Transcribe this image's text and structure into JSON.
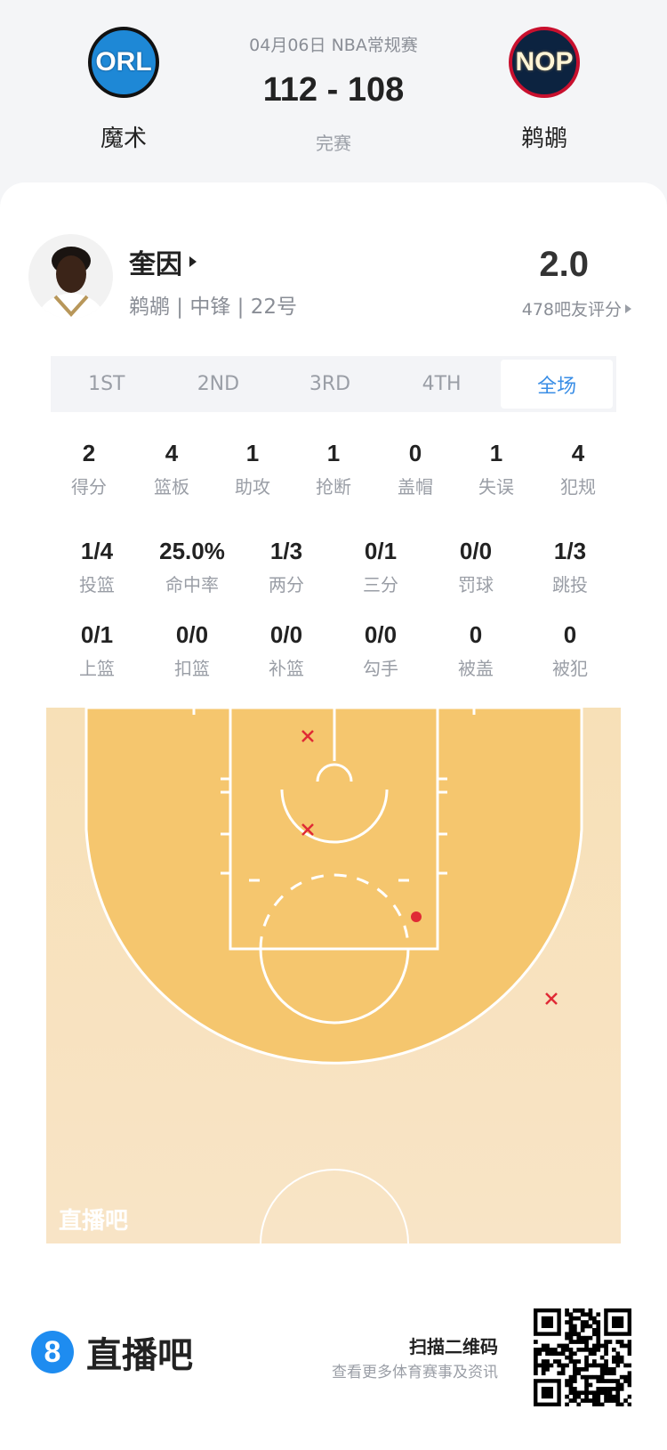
{
  "game": {
    "date_type": "04月06日 NBA常规赛",
    "score": "112 - 108",
    "status": "完赛",
    "home": {
      "abbr": "ORL",
      "name": "魔术",
      "color": "#1e88d6"
    },
    "away": {
      "abbr": "NOP",
      "name": "鹈鹕",
      "color": "#0c2340"
    }
  },
  "player": {
    "name": "奎因",
    "info": "鹈鹕 | 中锋 | 22号",
    "rating": "2.0",
    "rating_count": "478吧友评分"
  },
  "tabs": [
    {
      "label": "1ST"
    },
    {
      "label": "2ND"
    },
    {
      "label": "3RD"
    },
    {
      "label": "4TH"
    },
    {
      "label": "全场",
      "active": true
    }
  ],
  "stats_row1": [
    {
      "v": "2",
      "l": "得分"
    },
    {
      "v": "4",
      "l": "篮板"
    },
    {
      "v": "1",
      "l": "助攻"
    },
    {
      "v": "1",
      "l": "抢断"
    },
    {
      "v": "0",
      "l": "盖帽"
    },
    {
      "v": "1",
      "l": "失误"
    },
    {
      "v": "4",
      "l": "犯规"
    }
  ],
  "stats_row2": [
    {
      "v": "1/4",
      "l": "投篮"
    },
    {
      "v": "25.0%",
      "l": "命中率"
    },
    {
      "v": "1/3",
      "l": "两分"
    },
    {
      "v": "0/1",
      "l": "三分"
    },
    {
      "v": "0/0",
      "l": "罚球"
    },
    {
      "v": "1/3",
      "l": "跳投"
    }
  ],
  "stats_row3": [
    {
      "v": "0/1",
      "l": "上篮"
    },
    {
      "v": "0/0",
      "l": "扣篮"
    },
    {
      "v": "0/0",
      "l": "补篮"
    },
    {
      "v": "0/0",
      "l": "勾手"
    },
    {
      "v": "0",
      "l": "被盖"
    },
    {
      "v": "0",
      "l": "被犯"
    }
  ],
  "shot_chart": {
    "made_color": "#e02a35",
    "missed_color": "#e02a35",
    "watermark": "直播吧",
    "shots": [
      {
        "result": "missed",
        "zone": "paint"
      },
      {
        "result": "missed",
        "zone": "paint"
      },
      {
        "result": "made",
        "zone": "mid-range"
      },
      {
        "result": "missed",
        "zone": "three-point"
      }
    ]
  },
  "footer": {
    "brand": "直播吧",
    "brand_digit": "8",
    "brand_color": "#1e8cf0",
    "scan": "扫描二维码",
    "scan_sub": "查看更多体育赛事及资讯"
  }
}
